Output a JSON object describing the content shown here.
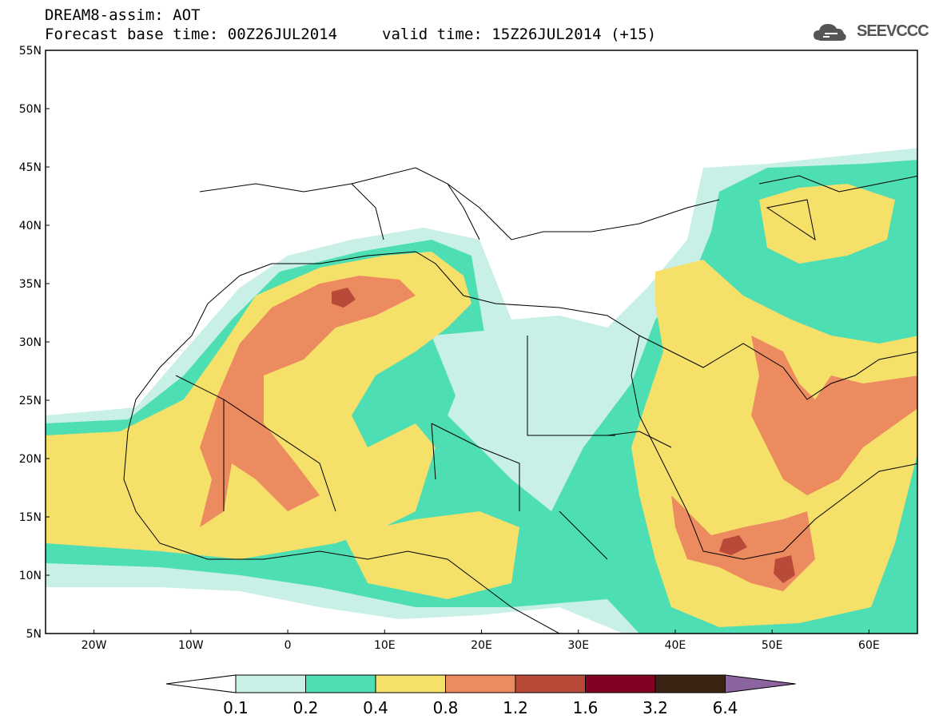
{
  "header": {
    "title": "DREAM8-assim: AOT",
    "base_time": "Forecast base time: 00Z26JUL2014",
    "valid_time": "valid time: 15Z26JUL2014 (+15)"
  },
  "logo": {
    "text": "SEEVCCC",
    "icon": "cloud-icon"
  },
  "map": {
    "lat_range": [
      5,
      55
    ],
    "lon_range": [
      -25,
      65
    ],
    "lat_labels": [
      "55N",
      "50N",
      "45N",
      "40N",
      "35N",
      "30N",
      "25N",
      "20N",
      "15N",
      "10N",
      "5N"
    ],
    "lon_labels": [
      "20W",
      "10W",
      "0",
      "10E",
      "20E",
      "30E",
      "40E",
      "50E",
      "60E"
    ],
    "field": "Aerosol optical thickness"
  },
  "colorbar": {
    "levels": [
      "0.1",
      "0.2",
      "0.4",
      "0.8",
      "1.2",
      "1.6",
      "3.2",
      "6.4"
    ],
    "colors": [
      "#ffffff",
      "#c8f0e6",
      "#4ddeb4",
      "#f5e06a",
      "#ec8a60",
      "#b94a3a",
      "#820022",
      "#3c2414",
      "#8c64a0"
    ]
  },
  "colors": {
    "c01": "#c8f0e6",
    "c02": "#4ddeb4",
    "c04": "#f5e06a",
    "c08": "#ec8a60",
    "c12": "#b94a3a",
    "c16": "#820022",
    "c32": "#3c2414"
  }
}
